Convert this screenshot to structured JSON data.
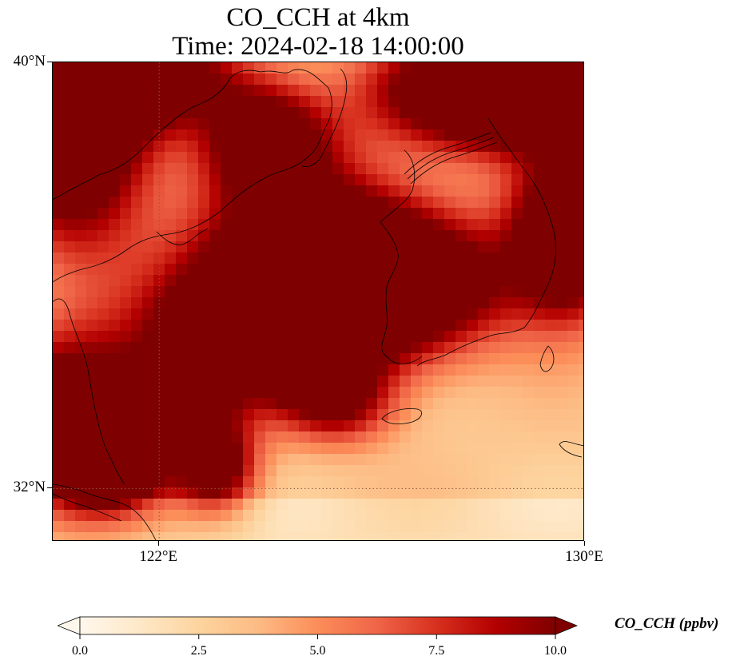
{
  "title_line1": "CO_CCH at 4km",
  "title_line2": "Time: 2024-02-18 14:00:00",
  "lat_ticks": [
    {
      "label": "40°N",
      "lat": 40
    },
    {
      "label": "32°N",
      "lat": 32
    }
  ],
  "lon_ticks": [
    {
      "label": "122°E",
      "lon": 122
    },
    {
      "label": "130°E",
      "lon": 130
    }
  ],
  "extent": {
    "lon_min": 120,
    "lon_max": 130,
    "lat_min": 31,
    "lat_max": 40
  },
  "colorbar": {
    "label": "CO_CCH (ppbv)",
    "min": 0,
    "max": 10,
    "ticks": [
      "0.0",
      "2.5",
      "5.0",
      "7.5",
      "10.0"
    ],
    "colormap": "OrRd",
    "colors": [
      "#fff7ec",
      "#fee8c8",
      "#fdd49e",
      "#fdbb84",
      "#fc8d59",
      "#ef6548",
      "#d7301f",
      "#b30000",
      "#7f0000"
    ],
    "extend": "both"
  },
  "gridlines": {
    "color": "#8c5a3c",
    "style": "dotted"
  }
}
